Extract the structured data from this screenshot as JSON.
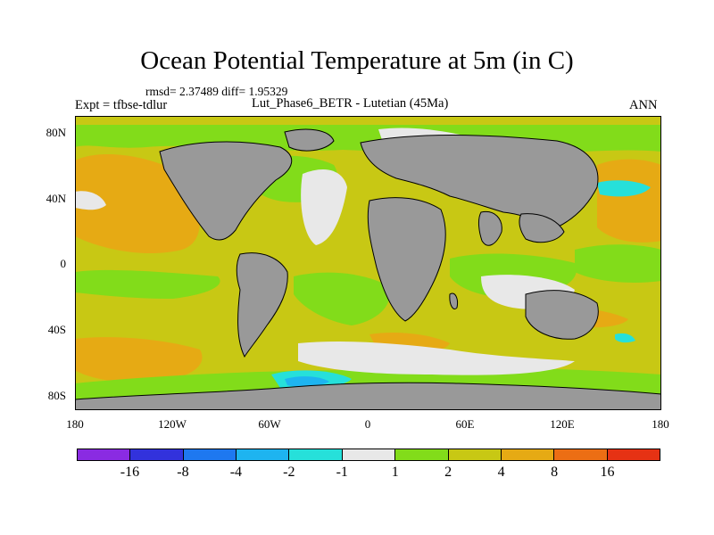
{
  "title": "Ocean Potential Temperature at 5m (in C)",
  "stats": "rmsd= 2.37489 diff= 1.95329",
  "left_label": "Expt = tfbse-tdlur",
  "center_label": "Lut_Phase6_BETR - Lutetian (45Ma)",
  "right_label": "ANN",
  "lat_labels": [
    "80N",
    "40N",
    "0",
    "40S",
    "80S"
  ],
  "lon_labels": [
    "180",
    "120W",
    "60W",
    "0",
    "60E",
    "120E",
    "180"
  ],
  "colorbar": {
    "colors": [
      "#8a2be2",
      "#3232dc",
      "#1e78f0",
      "#1eb4f0",
      "#26e0da",
      "#e8e8e8",
      "#82dc1a",
      "#c8c814",
      "#e6aa14",
      "#ec6e14",
      "#e63214"
    ],
    "labels": [
      "-16",
      "-8",
      "-4",
      "-2",
      "-1",
      "1",
      "2",
      "4",
      "8",
      "16"
    ]
  },
  "map_colors": {
    "land": "#999999",
    "bin_-1_1": "#e8e8e8",
    "bin_1_2": "#82dc1a",
    "bin_2_4": "#c8c814",
    "bin_4_8": "#e6aa14",
    "bin_-2_-1": "#26e0da",
    "bin_-4_-2": "#1eb4f0"
  }
}
